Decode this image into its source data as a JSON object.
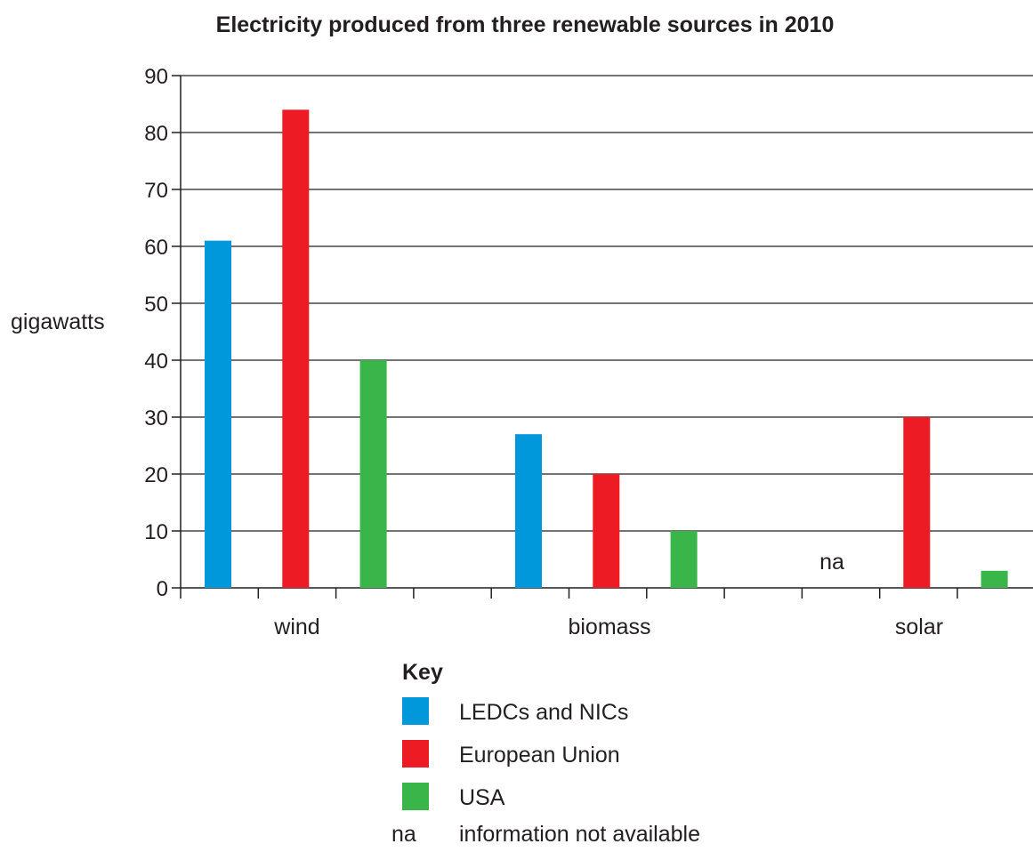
{
  "chart_data": {
    "type": "bar",
    "title": "Electricity produced from three renewable sources in 2010",
    "xlabel": "",
    "ylabel": "gigawatts",
    "ylim": [
      0,
      90
    ],
    "yticks": [
      0,
      10,
      20,
      30,
      40,
      50,
      60,
      70,
      80,
      90
    ],
    "grid": true,
    "categories": [
      "wind",
      "biomass",
      "solar"
    ],
    "series": [
      {
        "name": "LEDCs and NICs",
        "color": "#0098da",
        "values": [
          61,
          27,
          null
        ]
      },
      {
        "name": "European Union",
        "color": "#ed1c24",
        "values": [
          84,
          20,
          30
        ]
      },
      {
        "name": "USA",
        "color": "#39b54a",
        "values": [
          40,
          10,
          3
        ]
      }
    ],
    "missing_marker": "na",
    "legend": {
      "title": "Key",
      "placement": "bottom-center",
      "note_symbol": "na",
      "note_text": "information not available"
    }
  }
}
